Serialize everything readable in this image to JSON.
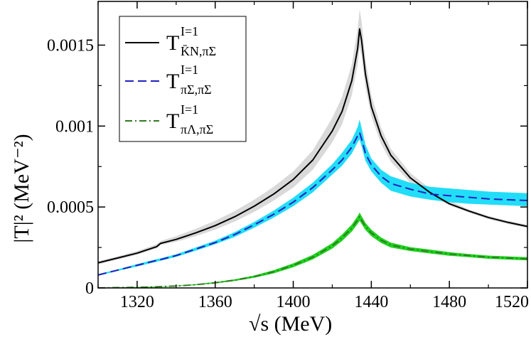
{
  "chart_data": {
    "type": "line",
    "title": "",
    "xlabel": "√s   (MeV)",
    "ylabel": "|T|² (MeV⁻²)",
    "xlim": [
      1300,
      1520
    ],
    "ylim": [
      0,
      0.00177
    ],
    "xticks": [
      1320,
      1360,
      1400,
      1440,
      1480,
      1520
    ],
    "xtick_labels": [
      "1320",
      "1360",
      "1400",
      "1440",
      "1480",
      "1520"
    ],
    "yticks": [
      0,
      0.0005,
      0.001,
      0.0015
    ],
    "ytick_labels": [
      "0",
      "0.0005",
      "0.001",
      "0.0015"
    ],
    "grid": false,
    "legend_position": "top-left",
    "x": [
      1300,
      1310,
      1320,
      1330,
      1332,
      1340,
      1350,
      1360,
      1370,
      1380,
      1390,
      1400,
      1410,
      1420,
      1425,
      1430,
      1433,
      1434,
      1435,
      1437,
      1440,
      1445,
      1450,
      1460,
      1470,
      1480,
      1490,
      1500,
      1510,
      1520
    ],
    "series": [
      {
        "name": "T^{I=1}_{K̄N,πΣ}",
        "label_main": "T",
        "label_sup": "I=1",
        "label_sub": "K̄N,πΣ",
        "color": "#000000",
        "dash": "solid",
        "band_color": "#d9d9d9",
        "values": [
          0.000155,
          0.000185,
          0.000215,
          0.000255,
          0.000275,
          0.0003,
          0.00034,
          0.000385,
          0.00044,
          0.000505,
          0.00058,
          0.00067,
          0.00079,
          0.00097,
          0.00109,
          0.00128,
          0.00148,
          0.0016,
          0.00153,
          0.00132,
          0.00112,
          0.00094,
          0.00082,
          0.00068,
          0.00059,
          0.00052,
          0.000475,
          0.000435,
          0.000405,
          0.00038
        ],
        "band_lower": [
          0.000145,
          0.000175,
          0.000205,
          0.000245,
          0.000265,
          0.000285,
          0.00032,
          0.00036,
          0.00041,
          0.00047,
          0.00054,
          0.00062,
          0.00073,
          0.0009,
          0.00101,
          0.00119,
          0.00138,
          0.00149,
          0.00143,
          0.00124,
          0.00106,
          0.00089,
          0.00078,
          0.00065,
          0.00057,
          0.00051,
          0.000465,
          0.000425,
          0.000395,
          0.00037
        ],
        "band_upper": [
          0.000165,
          0.000195,
          0.000228,
          0.00027,
          0.00029,
          0.00032,
          0.000365,
          0.000415,
          0.000475,
          0.000545,
          0.000625,
          0.00072,
          0.00085,
          0.00105,
          0.00118,
          0.00138,
          0.0016,
          0.00172,
          0.00165,
          0.00141,
          0.00119,
          0.00099,
          0.00086,
          0.00071,
          0.000615,
          0.00054,
          0.000485,
          0.000445,
          0.000415,
          0.00039
        ]
      },
      {
        "name": "T^{I=1}_{πΣ,πΣ}",
        "label_main": "T",
        "label_sup": "I=1",
        "label_sub": "πΣ,πΣ",
        "color": "#1f1fbf",
        "dash": "dashed",
        "band_color": "#22ddf7",
        "values": [
          8e-05,
          0.00011,
          0.00014,
          0.00017,
          0.000175,
          0.0002,
          0.00024,
          0.00028,
          0.00033,
          0.00039,
          0.000455,
          0.00053,
          0.00062,
          0.00073,
          0.00079,
          0.00087,
          0.00094,
          0.00096,
          0.00092,
          0.00083,
          0.00076,
          0.00069,
          0.000645,
          0.00061,
          0.00058,
          0.00057,
          0.00056,
          0.00055,
          0.000545,
          0.00054
        ],
        "band_lower": [
          7.5e-05,
          0.000105,
          0.000133,
          0.000162,
          0.000168,
          0.000192,
          0.00023,
          0.00027,
          0.000315,
          0.000372,
          0.000435,
          0.000505,
          0.00059,
          0.0007,
          0.000755,
          0.00083,
          0.0009,
          0.000918,
          0.000875,
          0.000785,
          0.00072,
          0.00065,
          0.0006,
          0.000565,
          0.000545,
          0.00053,
          0.00052,
          0.000515,
          0.00051,
          0.000505
        ],
        "band_upper": [
          8.5e-05,
          0.000115,
          0.000147,
          0.000178,
          0.000183,
          0.000208,
          0.00025,
          0.000292,
          0.000345,
          0.000408,
          0.000478,
          0.000558,
          0.00065,
          0.000765,
          0.000835,
          0.000915,
          0.000995,
          0.00104,
          0.00099,
          0.000885,
          0.0008,
          0.00073,
          0.00069,
          0.00065,
          0.000625,
          0.000615,
          0.000605,
          0.000595,
          0.00059,
          0.000585
        ]
      },
      {
        "name": "T^{I=1}_{πΛ,πΣ}",
        "label_main": "T",
        "label_sup": "I=1",
        "label_sub": "πΛ,πΣ",
        "color": "#2f7a1f",
        "dash": "dashdot",
        "band_color": "#1fd21f",
        "values": [
          0.0,
          2e-06,
          4e-06,
          7e-06,
          8e-06,
          1.2e-05,
          2e-05,
          3.2e-05,
          4.8e-05,
          7e-05,
          0.0001,
          0.00014,
          0.00019,
          0.00026,
          0.00031,
          0.00037,
          0.00042,
          0.00044,
          0.00042,
          0.00038,
          0.00034,
          0.000295,
          0.000265,
          0.00024,
          0.000225,
          0.00021,
          0.0002,
          0.00019,
          0.000185,
          0.00018
        ],
        "band_lower": [
          0.0,
          0.0,
          2e-06,
          5e-06,
          6e-06,
          1e-05,
          1.7e-05,
          2.8e-05,
          4.3e-05,
          6.3e-05,
          9e-05,
          0.000128,
          0.000176,
          0.000243,
          0.00029,
          0.000348,
          0.000396,
          0.000414,
          0.000396,
          0.000358,
          0.00032,
          0.000278,
          0.00025,
          0.000228,
          0.000213,
          0.000199,
          0.00019,
          0.00018,
          0.000175,
          0.00017
        ],
        "band_upper": [
          2e-06,
          4e-06,
          6e-06,
          9e-06,
          1e-05,
          1.4e-05,
          2.3e-05,
          3.6e-05,
          5.3e-05,
          7.7e-05,
          0.00011,
          0.000152,
          0.000204,
          0.000277,
          0.00033,
          0.000392,
          0.000444,
          0.000466,
          0.000444,
          0.000402,
          0.00036,
          0.000312,
          0.00028,
          0.000252,
          0.000237,
          0.000221,
          0.00021,
          0.0002,
          0.000195,
          0.00019
        ]
      }
    ]
  }
}
